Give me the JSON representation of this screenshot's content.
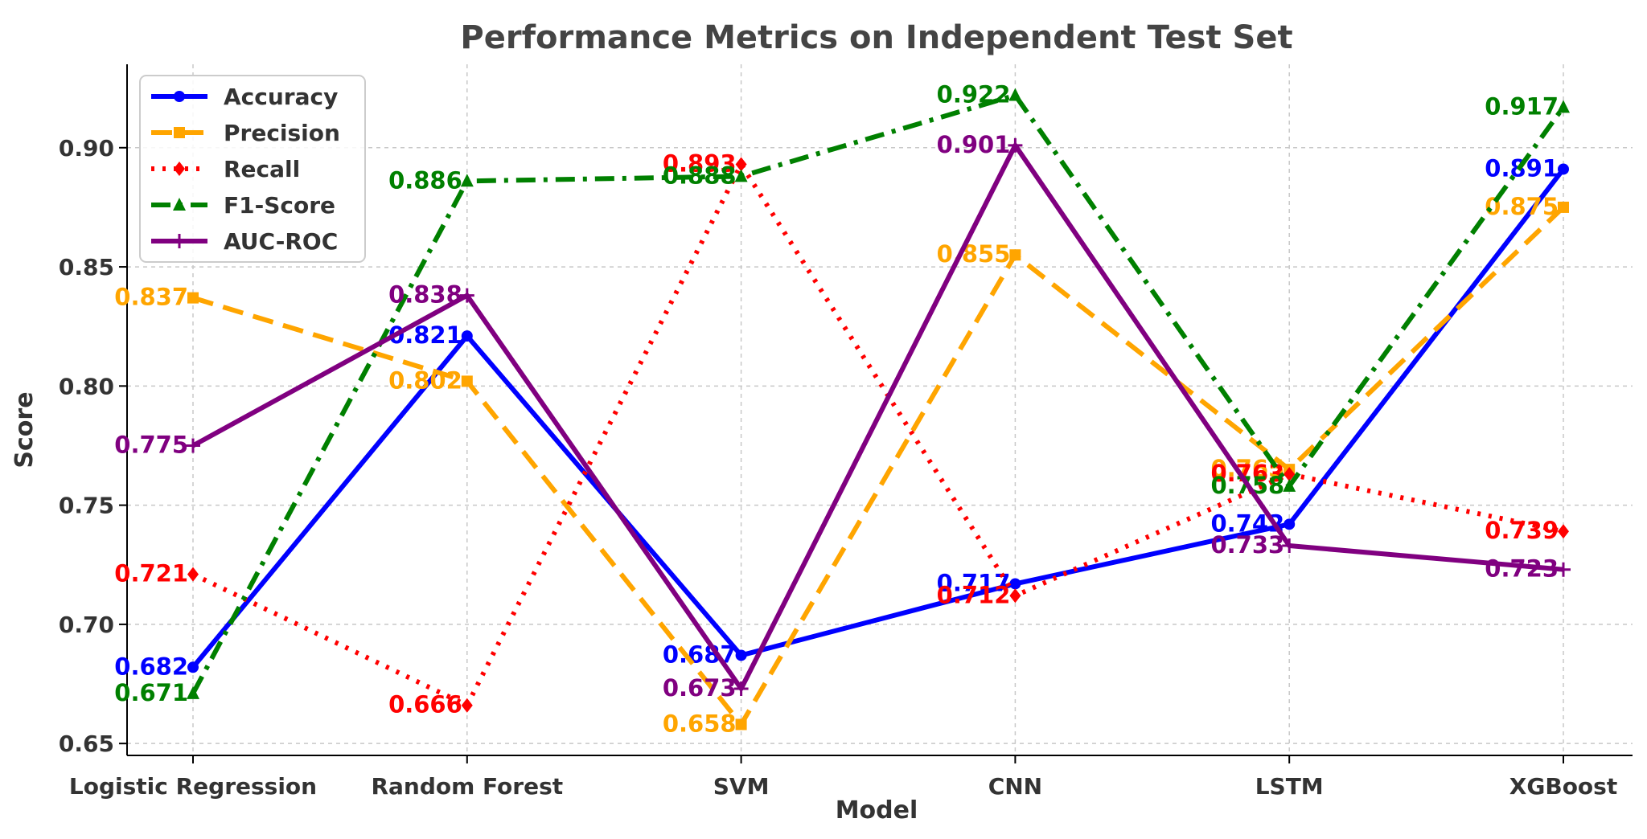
{
  "chart_data": {
    "type": "line",
    "title": "Performance Metrics on Independent Test Set",
    "xlabel": "Model",
    "ylabel": "Score",
    "categories": [
      "Logistic Regression",
      "Random Forest",
      "SVM",
      "CNN",
      "LSTM",
      "XGBoost"
    ],
    "ylim": [
      0.645,
      0.935
    ],
    "yticks": [
      0.65,
      0.7,
      0.75,
      0.8,
      0.85,
      0.9
    ],
    "ytick_labels": [
      "0.65",
      "0.70",
      "0.75",
      "0.80",
      "0.85",
      "0.90"
    ],
    "grid": true,
    "legend_position": "top-left",
    "series": [
      {
        "name": "Accuracy",
        "color": "#0000ff",
        "dash": "solid",
        "marker": "circle",
        "values": [
          0.682,
          0.821,
          0.687,
          0.717,
          0.742,
          0.891
        ],
        "labels": [
          "0.682",
          "0.821",
          "0.687",
          "0.717",
          "0.742",
          "0.891"
        ]
      },
      {
        "name": "Precision",
        "color": "#ffa500",
        "dash": "dashed",
        "marker": "square",
        "values": [
          0.837,
          0.802,
          0.658,
          0.855,
          0.765,
          0.875
        ],
        "labels": [
          "0.837",
          "0.802",
          "0.658",
          "0.855",
          "0.765",
          "0.875"
        ]
      },
      {
        "name": "Recall",
        "color": "#ff0000",
        "dash": "dotted",
        "marker": "diamond",
        "values": [
          0.721,
          0.666,
          0.893,
          0.712,
          0.763,
          0.739
        ],
        "labels": [
          "0.721",
          "0.666",
          "0.893",
          "0.712",
          "0.763",
          "0.739"
        ]
      },
      {
        "name": "F1-Score",
        "color": "#008000",
        "dash": "dashdot",
        "marker": "triangle",
        "values": [
          0.671,
          0.886,
          0.888,
          0.922,
          0.758,
          0.917
        ],
        "labels": [
          "0.671",
          "0.886",
          "0.888",
          "0.922",
          "0.758",
          "0.917"
        ]
      },
      {
        "name": "AUC-ROC",
        "color": "#800080",
        "dash": "solid",
        "marker": "star",
        "values": [
          0.775,
          0.838,
          0.673,
          0.901,
          0.733,
          0.723
        ],
        "labels": [
          "0.775",
          "0.838",
          "0.673",
          "0.901",
          "0.733",
          "0.723"
        ]
      }
    ]
  }
}
